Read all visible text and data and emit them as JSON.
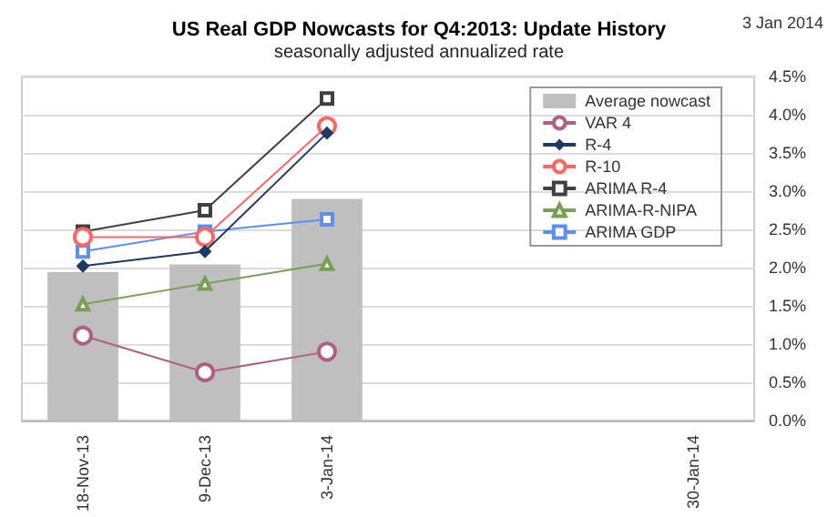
{
  "chart_data": {
    "type": "line",
    "title": "US Real GDP Nowcasts for Q4:2013: Update History",
    "subtitle": "seasonally adjusted annualized rate",
    "annotations": [
      "3 Jan 2014"
    ],
    "categories": [
      "18-Nov-13",
      "9-Dec-13",
      "3-Jan-14",
      null,
      null,
      "30-Jan-14"
    ],
    "series": [
      {
        "name": "Average nowcast",
        "type": "bar",
        "color": "#bfbfbf",
        "values": [
          1.94,
          2.04,
          2.9,
          null,
          null,
          null
        ]
      },
      {
        "name": "VAR 4",
        "color": "#b0607f",
        "marker": "circle",
        "values": [
          1.11,
          0.63,
          0.9,
          null,
          null,
          null
        ]
      },
      {
        "name": "R-4",
        "color": "#1f3864",
        "marker": "diamond",
        "values": [
          2.02,
          2.21,
          3.76,
          null,
          null,
          null
        ]
      },
      {
        "name": "R-10",
        "color": "#ff6666",
        "marker": "circle",
        "values": [
          2.4,
          2.4,
          3.85,
          null,
          null,
          null
        ]
      },
      {
        "name": "ARIMA R-4",
        "color": "#404040",
        "marker": "square",
        "values": [
          2.47,
          2.75,
          4.21,
          null,
          null,
          null
        ]
      },
      {
        "name": "ARIMA-R-NIPA",
        "color": "#77a055",
        "marker": "triangle",
        "values": [
          1.52,
          1.79,
          2.05,
          null,
          null,
          null
        ]
      },
      {
        "name": "ARIMA GDP",
        "color": "#5b8ff0",
        "marker": "square",
        "values": [
          2.21,
          2.47,
          2.63,
          null,
          null,
          null
        ]
      }
    ],
    "ylim": [
      0,
      4.5
    ],
    "yticks": [
      {
        "value": 0,
        "label": "0.0%"
      },
      {
        "value": 0.5,
        "label": "0.5%"
      },
      {
        "value": 1,
        "label": "1.0%"
      },
      {
        "value": 1.5,
        "label": "1.5%"
      },
      {
        "value": 2,
        "label": "2.0%"
      },
      {
        "value": 2.5,
        "label": "2.5%"
      },
      {
        "value": 3,
        "label": "3.0%"
      },
      {
        "value": 3.5,
        "label": "3.5%"
      },
      {
        "value": 4,
        "label": "4.0%"
      },
      {
        "value": 4.5,
        "label": "4.5%"
      }
    ],
    "grid": "y",
    "legend": "top right"
  }
}
